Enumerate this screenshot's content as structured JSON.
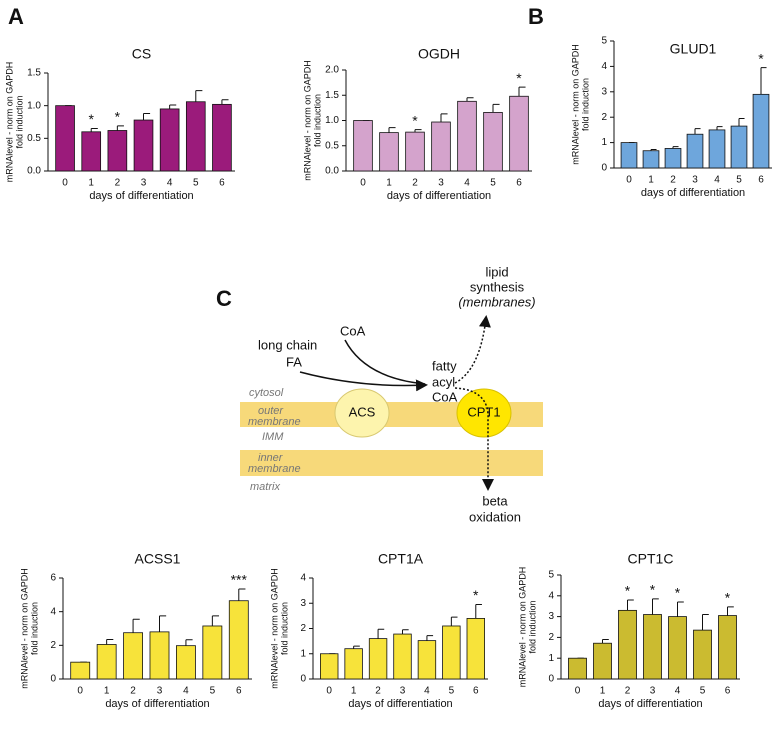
{
  "panels": [
    "A",
    "B",
    "C"
  ],
  "diagram": {
    "long_chain_fa": [
      "long chain",
      "FA"
    ],
    "coa": "CoA",
    "fatty_acyl_coa": [
      "fatty",
      "acyl",
      "CoA"
    ],
    "lipid_synthesis": [
      "lipid",
      "synthesis",
      "(membranes)"
    ],
    "beta_oxidation": [
      "beta",
      "oxidation"
    ],
    "cytosol": "cytosol",
    "outer_membrane": [
      "outer",
      "membrane"
    ],
    "imm": "IMM",
    "inner_membrane": [
      "inner",
      "membrane"
    ],
    "matrix": "matrix",
    "acs": "ACS",
    "cpt1": "CPT1"
  },
  "chart_data": [
    {
      "type": "bar",
      "title": "CS",
      "ylabel": [
        "mRNAlevel - norm on GAPDH",
        "fold induction"
      ],
      "xlabel": "days of differentiation",
      "categories": [
        "0",
        "1",
        "2",
        "3",
        "4",
        "5",
        "6"
      ],
      "values": [
        1.0,
        0.6,
        0.62,
        0.78,
        0.95,
        1.06,
        1.02
      ],
      "errors": [
        0,
        0.05,
        0.07,
        0.1,
        0.06,
        0.17,
        0.07
      ],
      "annotations": [
        null,
        "*",
        "*",
        null,
        null,
        null,
        null
      ],
      "color": "#9b1b7b",
      "ylim": [
        0,
        1.5
      ],
      "yticks": [
        {
          "value": 0,
          "label": "0.0"
        },
        0.5,
        {
          "value": 1,
          "label": "1.0"
        },
        1.5
      ]
    },
    {
      "type": "bar",
      "title": "OGDH",
      "ylabel": [
        "mRNAlevel - norm on GAPDH",
        "fold induction"
      ],
      "xlabel": "days of differentiation",
      "categories": [
        "0",
        "1",
        "2",
        "3",
        "4",
        "5",
        "6"
      ],
      "values": [
        1.0,
        0.76,
        0.77,
        0.97,
        1.38,
        1.16,
        1.48
      ],
      "errors": [
        0,
        0.1,
        0.05,
        0.16,
        0.07,
        0.16,
        0.18
      ],
      "annotations": [
        null,
        null,
        "*",
        null,
        null,
        null,
        "*"
      ],
      "color": "#d4a3cc",
      "ylim": [
        0,
        2
      ],
      "yticks": [
        {
          "value": 0,
          "label": "0.0"
        },
        0.5,
        {
          "value": 1,
          "label": "1.0"
        },
        1.5,
        {
          "value": 2,
          "label": "2.0"
        }
      ]
    },
    {
      "type": "bar",
      "title": "GLUD1",
      "ylabel": [
        "mRNAlevel - norm on GAPDH",
        "fold induction"
      ],
      "xlabel": "days of differentiation",
      "categories": [
        "0",
        "1",
        "2",
        "3",
        "4",
        "5",
        "6"
      ],
      "values": [
        1.0,
        0.68,
        0.77,
        1.33,
        1.5,
        1.65,
        2.9
      ],
      "errors": [
        0,
        0.05,
        0.07,
        0.22,
        0.13,
        0.3,
        1.05
      ],
      "annotations": [
        null,
        null,
        null,
        null,
        null,
        null,
        "*"
      ],
      "color": "#6ea6dc",
      "ylim": [
        0,
        5
      ],
      "yticks": [
        0,
        1,
        2,
        3,
        4,
        5
      ]
    },
    {
      "type": "bar",
      "title": "ACSS1",
      "ylabel": [
        "mRNAlevel - norm on GAPDH",
        "fold induction"
      ],
      "xlabel": "days of differentiation",
      "categories": [
        "0",
        "1",
        "2",
        "3",
        "4",
        "5",
        "6"
      ],
      "values": [
        1.0,
        2.05,
        2.75,
        2.8,
        1.98,
        3.15,
        4.65
      ],
      "errors": [
        0,
        0.3,
        0.8,
        0.95,
        0.35,
        0.6,
        0.7
      ],
      "annotations": [
        null,
        null,
        null,
        null,
        null,
        null,
        "***"
      ],
      "color": "#f7e33a",
      "ylim": [
        0,
        6
      ],
      "yticks": [
        0,
        2,
        4,
        6
      ]
    },
    {
      "type": "bar",
      "title": "CPT1A",
      "ylabel": [
        "mRNAlevel - norm on GAPDH",
        "fold induction"
      ],
      "xlabel": "days of differentiation",
      "categories": [
        "0",
        "1",
        "2",
        "3",
        "4",
        "5",
        "6"
      ],
      "values": [
        1.0,
        1.2,
        1.6,
        1.78,
        1.52,
        2.1,
        2.4
      ],
      "errors": [
        0,
        0.1,
        0.37,
        0.17,
        0.2,
        0.35,
        0.55
      ],
      "annotations": [
        null,
        null,
        null,
        null,
        null,
        null,
        "*"
      ],
      "color": "#f7e33a",
      "ylim": [
        0,
        4
      ],
      "yticks": [
        0,
        1,
        2,
        3,
        4
      ]
    },
    {
      "type": "bar",
      "title": "CPT1C",
      "ylabel": [
        "mRNAlevel - norm on GAPDH",
        "fold induction"
      ],
      "xlabel": "days of differentiation",
      "categories": [
        "0",
        "1",
        "2",
        "3",
        "4",
        "5",
        "6"
      ],
      "values": [
        1.0,
        1.72,
        3.3,
        3.1,
        3.0,
        2.35,
        3.05
      ],
      "errors": [
        0,
        0.18,
        0.5,
        0.75,
        0.7,
        0.75,
        0.42
      ],
      "annotations": [
        null,
        null,
        "*",
        "*",
        "*",
        null,
        "*"
      ],
      "color": "#cbbb30",
      "ylim": [
        0,
        5
      ],
      "yticks": [
        0,
        1,
        2,
        3,
        4,
        5
      ]
    }
  ]
}
